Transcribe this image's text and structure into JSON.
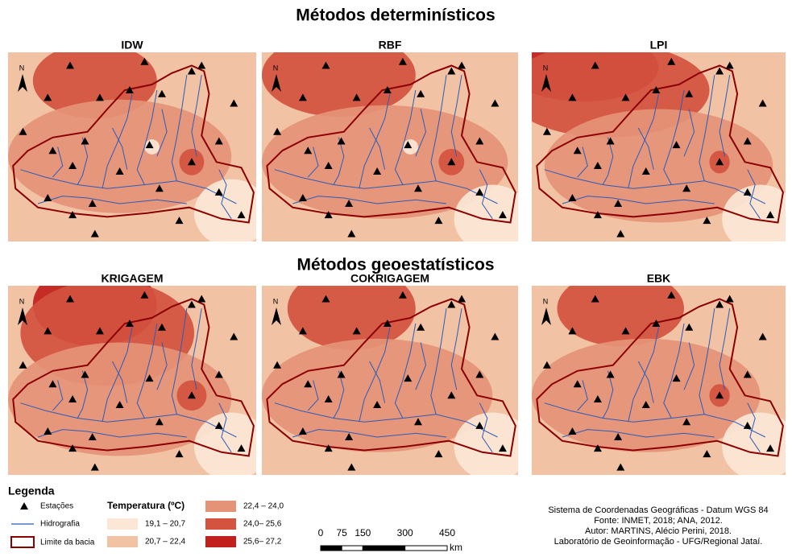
{
  "title_top": "Métodos determinísticos",
  "title_bottom": "Métodos geoestatísticos",
  "panels": [
    "IDW",
    "RBF",
    "LPI",
    "KRIGAGEM",
    "COKRIGAGEM",
    "EBK"
  ],
  "north": "N",
  "legend": {
    "title": "Legenda",
    "stations": "Estações",
    "rivers": "Hidrografia",
    "basin": "Limite da bacia",
    "temperature_title": "Temperatura (ºC)",
    "classes": [
      {
        "label": "19,1 – 20,7",
        "color": "#fce7d6"
      },
      {
        "label": "20,7 – 22,4",
        "color": "#f1c2a4"
      },
      {
        "label": "22,4 – 24,0",
        "color": "#e59377"
      },
      {
        "label": "24,0– 25,6",
        "color": "#d4533f"
      },
      {
        "label": "25,6– 27,2",
        "color": "#c1201c"
      }
    ]
  },
  "scale_bar": {
    "ticks": [
      0,
      75,
      150,
      300,
      450
    ],
    "unit": "km"
  },
  "credits": [
    "Sistema de Coordenadas Geográficas - Datum WGS 84",
    "Fonte: INMET, 2018; ANA, 2012.",
    "Autor: MARTINS, Alécio Perini, 2018.",
    "Laboratório de Geoinformação - UFG/Regional Jataí."
  ]
}
